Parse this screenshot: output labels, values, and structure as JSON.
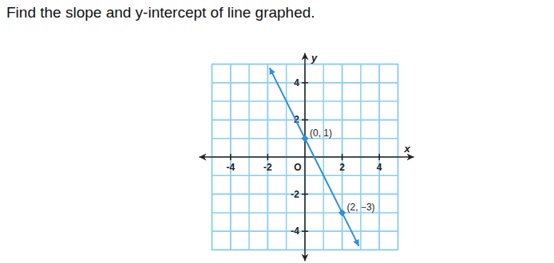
{
  "chart_data": {
    "type": "line",
    "title": "Find the slope and y-intercept of line graphed.",
    "x_label": "x",
    "y_label": "y",
    "xlim": [
      -5,
      5
    ],
    "ylim": [
      -5,
      5
    ],
    "xticks": [
      -4,
      -2,
      {
        "value": 0,
        "label": "O"
      },
      2,
      4
    ],
    "yticks": [
      -4,
      -2,
      2,
      4
    ],
    "grid": true,
    "x": [
      -1.9,
      0,
      2,
      2.9
    ],
    "series": [
      {
        "values": [
          4.8,
          1,
          -3,
          -4.8
        ],
        "color": "#2f8fd8",
        "line_style": "solid"
      }
    ],
    "annotations": [
      {
        "x": 0,
        "y": 1,
        "text": "(0, 1)"
      },
      {
        "x": 2,
        "y": -3,
        "text": "(2, −3)"
      }
    ]
  }
}
